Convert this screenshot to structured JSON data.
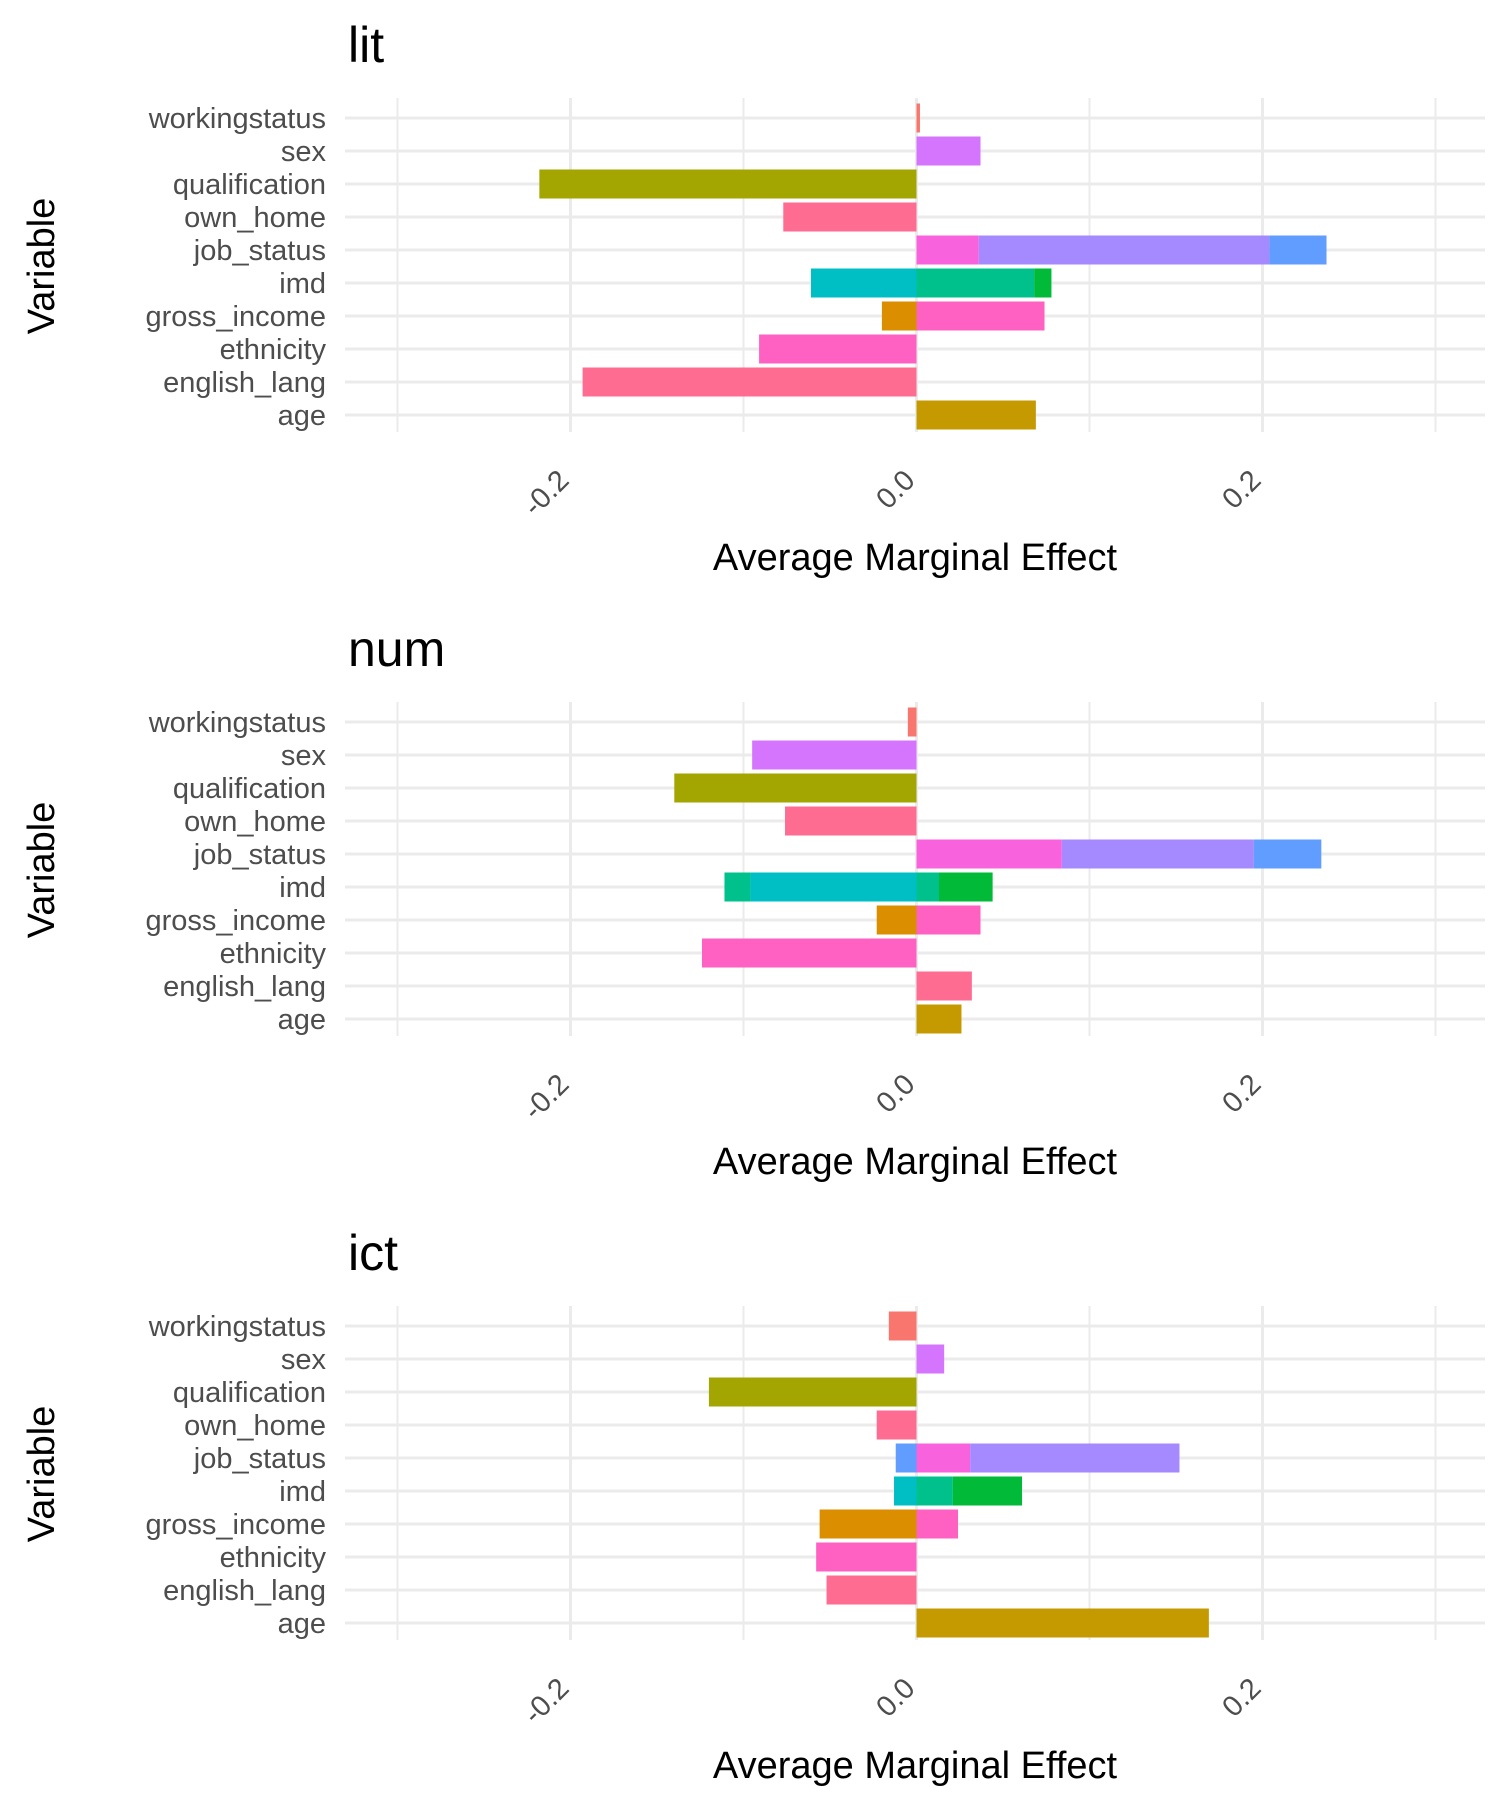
{
  "chart_data": [
    {
      "type": "bar",
      "stacked": true,
      "orientation": "horizontal",
      "title": "lit",
      "xlabel": "Average Marginal Effect",
      "ylabel": "Variable",
      "xlim": [
        -0.3,
        0.33
      ],
      "xticks": [
        "-0.2",
        "0.0",
        "0.2"
      ],
      "grid": true,
      "legend": "none",
      "categories": [
        "workingstatus",
        "sex",
        "qualification",
        "own_home",
        "job_status",
        "imd",
        "gross_income",
        "ethnicity",
        "english_lang",
        "age"
      ],
      "segments": [
        {
          "category": "workingstatus",
          "start": 0,
          "end": 0.002,
          "color": "#F8766D"
        },
        {
          "category": "sex",
          "start": 0,
          "end": 0.037,
          "color": "#D575FE"
        },
        {
          "category": "qualification",
          "start": 0,
          "end": -0.218,
          "color": "#A3A500"
        },
        {
          "category": "own_home",
          "start": 0,
          "end": -0.077,
          "color": "#FF6C91"
        },
        {
          "category": "job_status",
          "start": 0,
          "end": 0.036,
          "color": "#F962DD"
        },
        {
          "category": "job_status",
          "start": 0.036,
          "end": 0.204,
          "color": "#A58AFF"
        },
        {
          "category": "job_status",
          "start": 0.204,
          "end": 0.237,
          "color": "#619CFF"
        },
        {
          "category": "imd",
          "start": 0,
          "end": -0.061,
          "color": "#00BFC4"
        },
        {
          "category": "imd",
          "start": 0,
          "end": 0.068,
          "color": "#00C08B"
        },
        {
          "category": "imd",
          "start": 0.068,
          "end": 0.078,
          "color": "#00BA38"
        },
        {
          "category": "gross_income",
          "start": 0,
          "end": -0.02,
          "color": "#DB8E00"
        },
        {
          "category": "gross_income",
          "start": 0,
          "end": 0.074,
          "color": "#FF61C3"
        },
        {
          "category": "ethnicity",
          "start": 0,
          "end": -0.091,
          "color": "#FF61C3"
        },
        {
          "category": "english_lang",
          "start": 0,
          "end": -0.193,
          "color": "#FF6C91"
        },
        {
          "category": "age",
          "start": 0,
          "end": 0.069,
          "color": "#C49A00"
        }
      ]
    },
    {
      "type": "bar",
      "stacked": true,
      "orientation": "horizontal",
      "title": "num",
      "xlabel": "Average Marginal Effect",
      "ylabel": "Variable",
      "xlim": [
        -0.3,
        0.33
      ],
      "xticks": [
        "-0.2",
        "0.0",
        "0.2"
      ],
      "grid": true,
      "legend": "none",
      "categories": [
        "workingstatus",
        "sex",
        "qualification",
        "own_home",
        "job_status",
        "imd",
        "gross_income",
        "ethnicity",
        "english_lang",
        "age"
      ],
      "segments": [
        {
          "category": "workingstatus",
          "start": 0,
          "end": -0.005,
          "color": "#F8766D"
        },
        {
          "category": "sex",
          "start": 0,
          "end": -0.095,
          "color": "#D575FE"
        },
        {
          "category": "qualification",
          "start": 0,
          "end": -0.14,
          "color": "#A3A500"
        },
        {
          "category": "own_home",
          "start": 0,
          "end": -0.076,
          "color": "#FF6C91"
        },
        {
          "category": "job_status",
          "start": 0,
          "end": 0.084,
          "color": "#F962DD"
        },
        {
          "category": "job_status",
          "start": 0.084,
          "end": 0.195,
          "color": "#A58AFF"
        },
        {
          "category": "job_status",
          "start": 0.195,
          "end": 0.234,
          "color": "#619CFF"
        },
        {
          "category": "imd",
          "start": 0,
          "end": -0.096,
          "color": "#00BFC4"
        },
        {
          "category": "imd",
          "start": -0.096,
          "end": -0.111,
          "color": "#00C08B"
        },
        {
          "category": "imd",
          "start": 0,
          "end": 0.013,
          "color": "#00C08B"
        },
        {
          "category": "imd",
          "start": 0.013,
          "end": 0.044,
          "color": "#00BA38"
        },
        {
          "category": "gross_income",
          "start": 0,
          "end": -0.023,
          "color": "#DB8E00"
        },
        {
          "category": "gross_income",
          "start": 0,
          "end": 0.037,
          "color": "#FF61C3"
        },
        {
          "category": "ethnicity",
          "start": 0,
          "end": -0.124,
          "color": "#FF61C3"
        },
        {
          "category": "english_lang",
          "start": 0,
          "end": 0.032,
          "color": "#FF6C91"
        },
        {
          "category": "age",
          "start": 0,
          "end": 0.026,
          "color": "#C49A00"
        }
      ]
    },
    {
      "type": "bar",
      "stacked": true,
      "orientation": "horizontal",
      "title": "ict",
      "xlabel": "Average Marginal Effect",
      "ylabel": "Variable",
      "xlim": [
        -0.3,
        0.33
      ],
      "xticks": [
        "-0.2",
        "0.0",
        "0.2"
      ],
      "grid": true,
      "legend": "none",
      "categories": [
        "workingstatus",
        "sex",
        "qualification",
        "own_home",
        "job_status",
        "imd",
        "gross_income",
        "ethnicity",
        "english_lang",
        "age"
      ],
      "segments": [
        {
          "category": "workingstatus",
          "start": 0,
          "end": -0.016,
          "color": "#F8766D"
        },
        {
          "category": "sex",
          "start": 0,
          "end": 0.016,
          "color": "#D575FE"
        },
        {
          "category": "qualification",
          "start": 0,
          "end": -0.12,
          "color": "#A3A500"
        },
        {
          "category": "own_home",
          "start": 0,
          "end": -0.023,
          "color": "#FF6C91"
        },
        {
          "category": "job_status",
          "start": 0,
          "end": -0.012,
          "color": "#619CFF"
        },
        {
          "category": "job_status",
          "start": 0,
          "end": 0.031,
          "color": "#F962DD"
        },
        {
          "category": "job_status",
          "start": 0.031,
          "end": 0.152,
          "color": "#A58AFF"
        },
        {
          "category": "imd",
          "start": 0,
          "end": -0.013,
          "color": "#00BFC4"
        },
        {
          "category": "imd",
          "start": 0,
          "end": 0.021,
          "color": "#00C08B"
        },
        {
          "category": "imd",
          "start": 0.021,
          "end": 0.061,
          "color": "#00BA38"
        },
        {
          "category": "gross_income",
          "start": 0,
          "end": -0.056,
          "color": "#DB8E00"
        },
        {
          "category": "gross_income",
          "start": 0,
          "end": 0.024,
          "color": "#FF61C3"
        },
        {
          "category": "ethnicity",
          "start": 0,
          "end": -0.058,
          "color": "#FF61C3"
        },
        {
          "category": "english_lang",
          "start": 0,
          "end": -0.052,
          "color": "#FF6C91"
        },
        {
          "category": "age",
          "start": 0,
          "end": 0.169,
          "color": "#C49A00"
        }
      ]
    }
  ]
}
